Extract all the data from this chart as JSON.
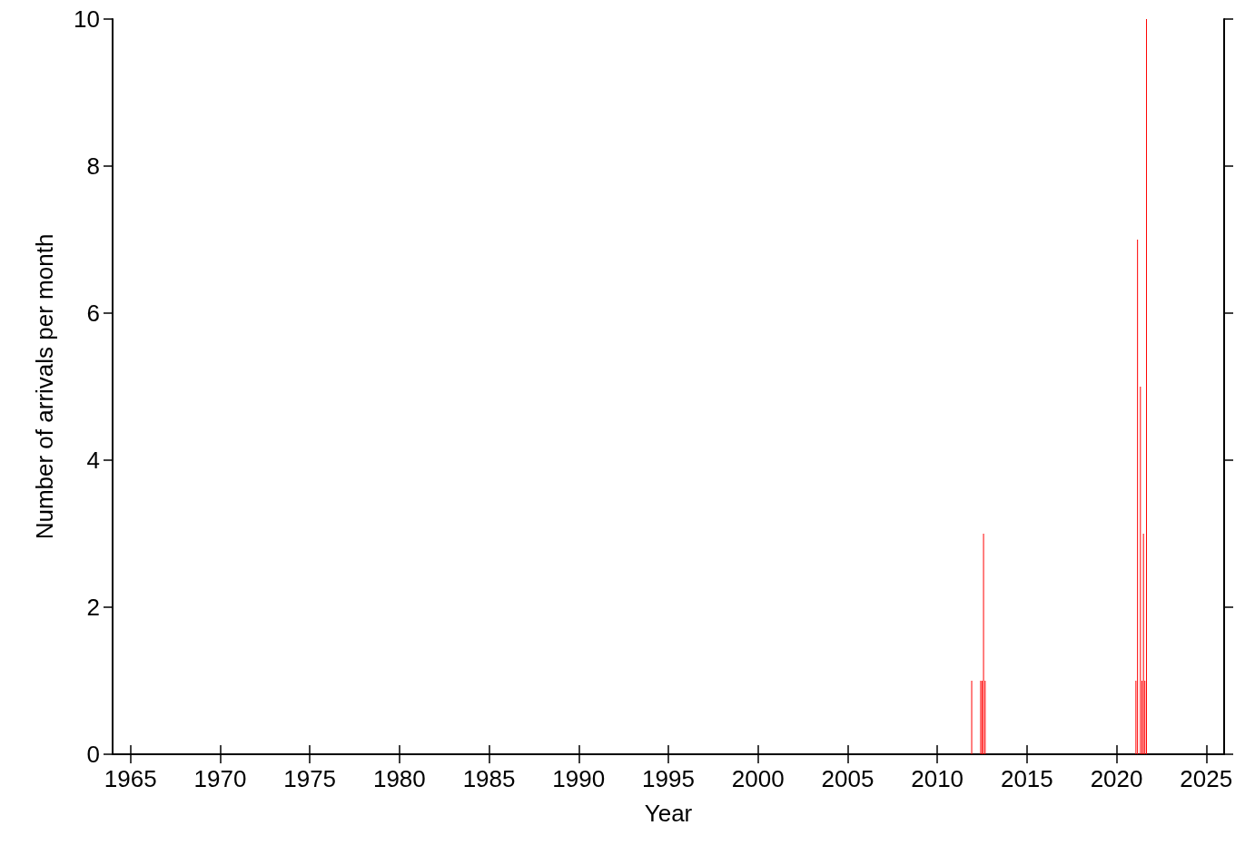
{
  "chart_data": {
    "type": "bar",
    "xlabel": "Year",
    "ylabel": "Number of arrivals per month",
    "x": [
      2011.92,
      2012.42,
      2012.5,
      2012.58,
      2012.67,
      2021.08,
      2021.17,
      2021.33,
      2021.42,
      2021.5,
      2021.58,
      2021.67
    ],
    "values": [
      1,
      1,
      1,
      3,
      1,
      1,
      7,
      5,
      1,
      3,
      1,
      10
    ],
    "color": "#ff0000",
    "xlim": [
      1964,
      2026
    ],
    "xticks": [
      1965,
      1970,
      1975,
      1980,
      1985,
      1990,
      1995,
      2000,
      2005,
      2010,
      2015,
      2020,
      2025
    ],
    "ylim": [
      0,
      10
    ],
    "yticks": [
      0,
      2,
      4,
      6,
      8,
      10
    ],
    "grid": false
  }
}
